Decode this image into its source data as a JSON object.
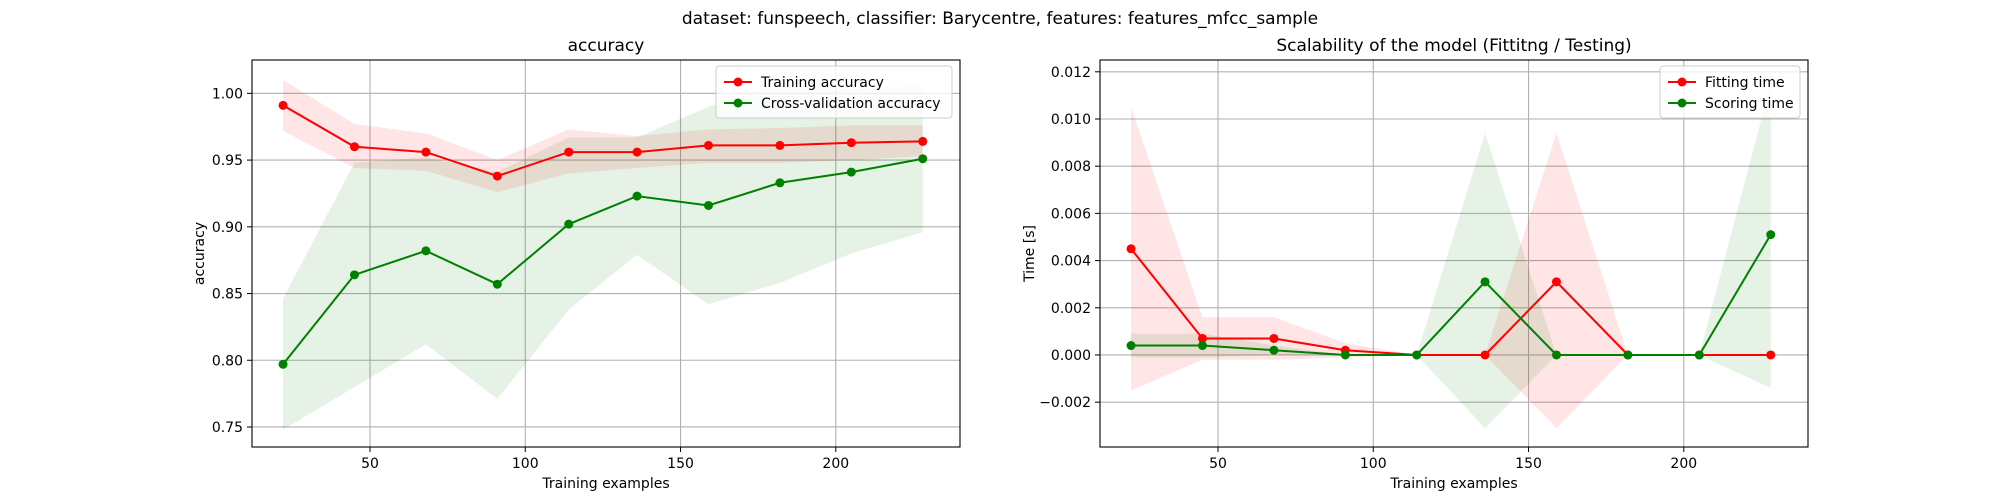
{
  "suptitle": "dataset: funspeech, classifier: Barycentre, features: features_mfcc_sample",
  "colors": {
    "train": "#ff0000",
    "cv": "#008000",
    "train_fill": "#ff0000",
    "cv_fill": "#008000",
    "grid": "#b0b0b0"
  },
  "chart_data": [
    {
      "type": "line",
      "title": "accuracy",
      "xlabel": "Training examples",
      "ylabel": "accuracy",
      "xlim": [
        12,
        240
      ],
      "ylim": [
        0.735,
        1.025
      ],
      "xticks": [
        50,
        100,
        150,
        200
      ],
      "yticks": [
        0.75,
        0.8,
        0.85,
        0.9,
        0.95,
        1.0
      ],
      "ytick_decimals": 2,
      "grid": true,
      "legend_position": "top-right",
      "x": [
        22,
        45,
        68,
        91,
        114,
        136,
        159,
        182,
        205,
        228
      ],
      "series": [
        {
          "name": "Training accuracy",
          "color_key": "train",
          "values": [
            0.991,
            0.96,
            0.956,
            0.938,
            0.956,
            0.956,
            0.961,
            0.961,
            0.963,
            0.964
          ],
          "band_lower": [
            0.972,
            0.944,
            0.942,
            0.926,
            0.94,
            0.944,
            0.948,
            0.948,
            0.95,
            0.953
          ],
          "band_upper": [
            1.01,
            0.977,
            0.97,
            0.95,
            0.973,
            0.968,
            0.973,
            0.974,
            0.976,
            0.976
          ]
        },
        {
          "name": "Cross-validation accuracy",
          "color_key": "cv",
          "values": [
            0.797,
            0.864,
            0.882,
            0.857,
            0.902,
            0.923,
            0.916,
            0.933,
            0.941,
            0.951
          ],
          "band_lower": [
            0.748,
            0.78,
            0.812,
            0.771,
            0.838,
            0.879,
            0.842,
            0.858,
            0.88,
            0.896
          ],
          "band_upper": [
            0.846,
            0.948,
            0.952,
            0.941,
            0.967,
            0.967,
            0.99,
            1.008,
            1.003,
            1.006
          ]
        }
      ]
    },
    {
      "type": "line",
      "title": "Scalability of the model (Fittitng / Testing)",
      "xlabel": "Training examples",
      "ylabel": "Time [s]",
      "xlim": [
        12,
        240
      ],
      "ylim": [
        -0.0039,
        0.0125
      ],
      "xticks": [
        50,
        100,
        150,
        200
      ],
      "yticks": [
        -0.002,
        0.0,
        0.002,
        0.004,
        0.006,
        0.008,
        0.01,
        0.012
      ],
      "ytick_decimals": 3,
      "grid": true,
      "legend_position": "top-right",
      "x": [
        22,
        45,
        68,
        91,
        114,
        136,
        159,
        182,
        205,
        228
      ],
      "series": [
        {
          "name": "Fitting time",
          "color_key": "train",
          "values": [
            0.0045,
            0.0007,
            0.0007,
            0.0002,
            0.0,
            0.0,
            0.0031,
            0.0,
            0.0,
            0.0
          ],
          "band_lower": [
            -0.0015,
            -0.0002,
            -0.0002,
            -0.0001,
            0.0,
            0.0,
            -0.0031,
            0.0,
            0.0,
            0.0
          ],
          "band_upper": [
            0.0105,
            0.0016,
            0.0016,
            0.0005,
            0.0,
            0.0,
            0.0094,
            0.0,
            0.0,
            0.0
          ]
        },
        {
          "name": "Scoring time",
          "color_key": "cv",
          "values": [
            0.0004,
            0.0004,
            0.0002,
            0.0,
            0.0,
            0.0031,
            0.0,
            0.0,
            0.0,
            0.0051
          ],
          "band_lower": [
            -0.0001,
            -0.0001,
            0.0,
            0.0,
            0.0,
            -0.0031,
            0.0,
            0.0,
            0.0,
            -0.0014
          ],
          "band_upper": [
            0.0009,
            0.0009,
            0.0004,
            0.0,
            0.0,
            0.0094,
            0.0,
            0.0,
            0.0,
            0.0115
          ]
        }
      ]
    }
  ]
}
